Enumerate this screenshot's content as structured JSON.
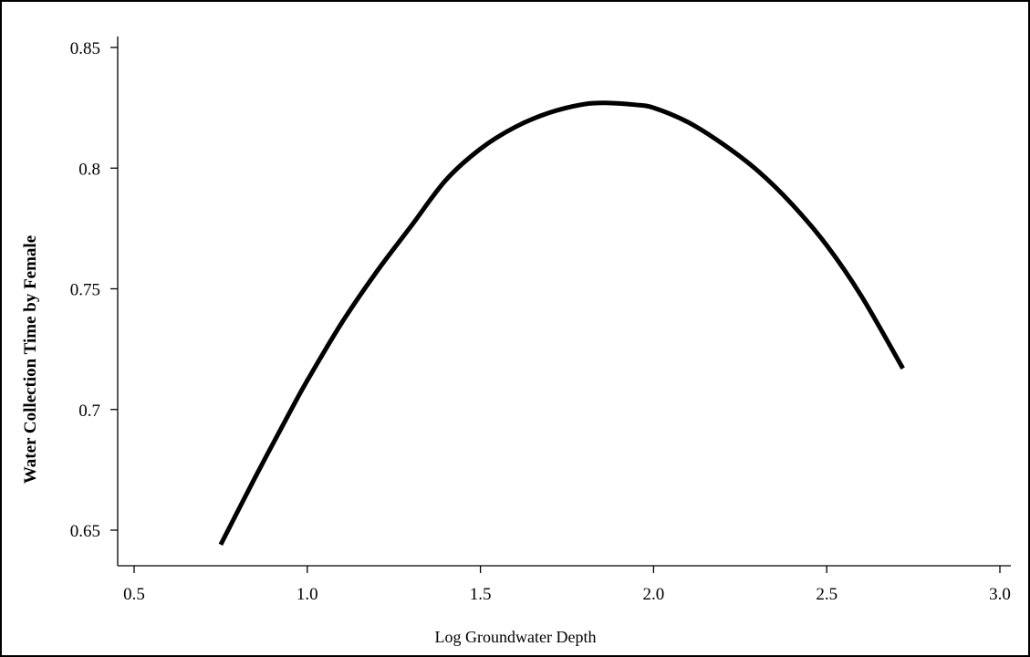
{
  "chart_data": {
    "type": "line",
    "title": "",
    "xlabel": "Log Groundwater Depth",
    "ylabel": "Water Collection  Time by Female",
    "xlim": [
      0.5,
      3.0
    ],
    "ylim": [
      0.64,
      0.855
    ],
    "x_ticks": [
      0.5,
      1.0,
      1.5,
      2.0,
      2.5,
      3.0
    ],
    "x_tick_labels": [
      "0.5",
      "1.0",
      "1.5",
      "2.0",
      "2.5",
      "3.0"
    ],
    "y_ticks": [
      0.65,
      0.7,
      0.75,
      0.8,
      0.85
    ],
    "y_tick_labels": [
      "0.65",
      "0.7",
      "0.75",
      "0.8",
      "0.85"
    ],
    "grid": false,
    "series": [
      {
        "color": "#000000",
        "x": [
          0.75,
          0.85,
          0.95,
          1.0,
          1.1,
          1.2,
          1.3,
          1.4,
          1.5,
          1.6,
          1.7,
          1.8,
          1.87,
          1.95,
          2.0,
          2.1,
          2.2,
          2.3,
          2.4,
          2.5,
          2.6,
          2.72
        ],
        "y": [
          0.644,
          0.672,
          0.699,
          0.712,
          0.736,
          0.757,
          0.776,
          0.795,
          0.808,
          0.817,
          0.823,
          0.8265,
          0.827,
          0.8262,
          0.825,
          0.819,
          0.81,
          0.799,
          0.785,
          0.768,
          0.747,
          0.717
        ]
      }
    ]
  }
}
